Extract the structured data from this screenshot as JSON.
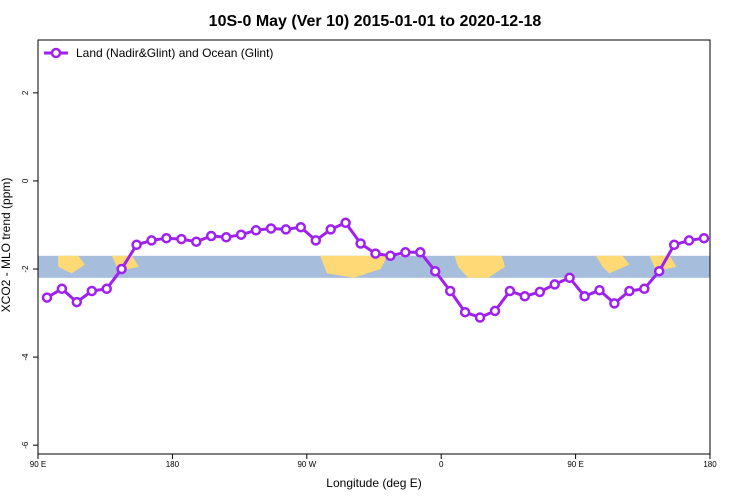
{
  "chart_data": {
    "type": "line",
    "title": "10S-0 May (Ver 10)   2015-01-01 to 2020-12-18",
    "xlabel": "Longitude (deg E)",
    "ylabel": "XCO2 - MLO trend (ppm)",
    "xlim": [
      90,
      540
    ],
    "ylim": [
      -6.2,
      3.2
    ],
    "x_ticks": [
      {
        "value": 90,
        "label": "90 E"
      },
      {
        "value": 180,
        "label": "180"
      },
      {
        "value": 270,
        "label": "90 W"
      },
      {
        "value": 360,
        "label": "0"
      },
      {
        "value": 450,
        "label": "90 E"
      },
      {
        "value": 540,
        "label": "180"
      }
    ],
    "y_ticks": [
      {
        "value": 2,
        "label": "2"
      },
      {
        "value": 0,
        "label": "0"
      },
      {
        "value": -2,
        "label": "-2"
      },
      {
        "value": -4,
        "label": "-4"
      },
      {
        "value": -6,
        "label": "-6"
      }
    ],
    "legend_position": "top-left",
    "grid": false,
    "series": [
      {
        "name": "Land (Nadir&Glint) and Ocean (Glint)",
        "color": "#a020f0",
        "x": [
          96,
          106,
          116,
          126,
          136,
          146,
          156,
          166,
          176,
          186,
          196,
          206,
          216,
          226,
          236,
          246,
          256,
          266,
          276,
          286,
          296,
          306,
          316,
          326,
          336,
          346,
          356,
          366,
          376,
          386,
          396,
          406,
          416,
          426,
          436,
          446,
          456,
          466,
          476,
          486,
          496,
          506,
          516,
          526,
          536
        ],
        "y": [
          -2.65,
          -2.45,
          -2.75,
          -2.5,
          -2.45,
          -2.0,
          -1.45,
          -1.35,
          -1.3,
          -1.32,
          -1.38,
          -1.25,
          -1.28,
          -1.22,
          -1.12,
          -1.08,
          -1.1,
          -1.05,
          -1.35,
          -1.1,
          -0.95,
          -1.42,
          -1.65,
          -1.7,
          -1.62,
          -1.62,
          -2.05,
          -2.5,
          -2.98,
          -3.1,
          -2.95,
          -2.5,
          -2.62,
          -2.52,
          -2.35,
          -2.2,
          -2.62,
          -2.48,
          -2.78,
          -2.5,
          -2.45,
          -2.05,
          -1.45,
          -1.35,
          -1.3
        ]
      }
    ],
    "map_strip": {
      "y_range": [
        -2.2,
        -1.7
      ],
      "ocean_color": "#a6bddb",
      "land_color": "#fed976"
    }
  }
}
